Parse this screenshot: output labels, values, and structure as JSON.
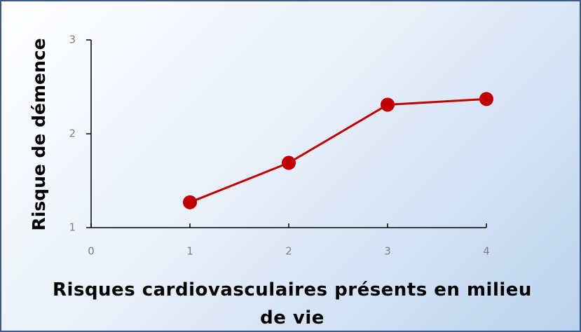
{
  "chart_data": {
    "type": "line",
    "x_label": "Risques cardiovasculaires présents en milieu de vie",
    "y_label": "Risque de démence",
    "x": [
      1,
      2,
      3,
      4
    ],
    "values": [
      1.27,
      1.69,
      2.31,
      2.37
    ],
    "color": "#c00000",
    "xlim": [
      0,
      4
    ],
    "xticks": [
      0,
      1,
      2,
      3,
      4
    ],
    "ylim": [
      1,
      3
    ],
    "yticks": [
      1,
      2,
      3
    ],
    "grid": false
  }
}
